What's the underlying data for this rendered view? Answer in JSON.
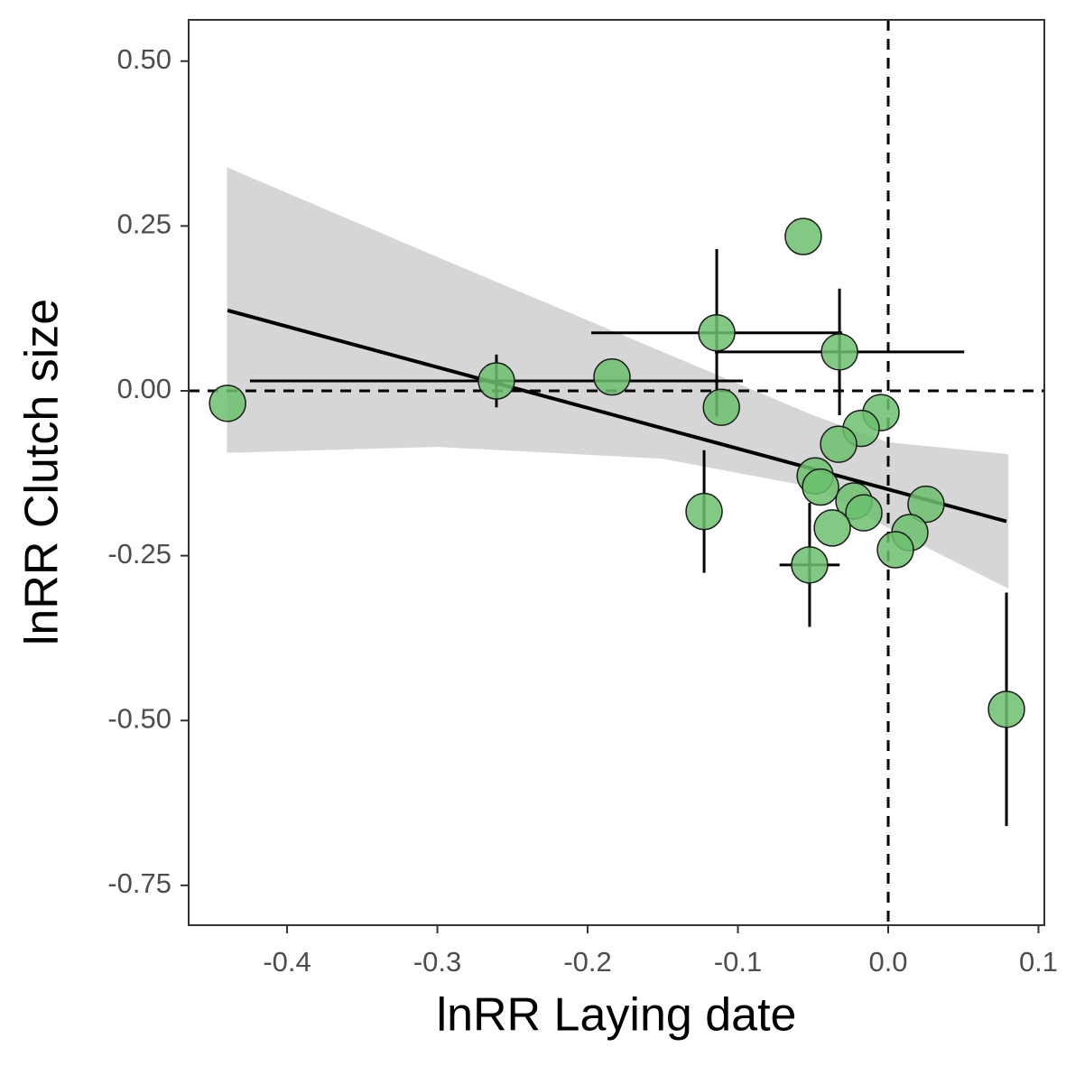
{
  "chart_data": {
    "type": "scatter",
    "x_label": "lnRR Laying date",
    "y_label": "lnRR Clutch size",
    "x": [
      -0.4396,
      -0.2607,
      -0.1838,
      -0.1141,
      -0.0324,
      -0.0565,
      -0.111,
      -0.0048,
      -0.018,
      -0.033,
      -0.1225,
      -0.0486,
      -0.045,
      -0.0228,
      -0.0162,
      -0.0372,
      0.0252,
      0.0144,
      0.0048,
      -0.0523,
      0.0787
    ],
    "y": [
      -0.019,
      0.015,
      0.021,
      0.088,
      0.059,
      0.234,
      -0.025,
      -0.033,
      -0.057,
      -0.081,
      -0.183,
      -0.129,
      -0.146,
      -0.167,
      -0.185,
      -0.208,
      -0.172,
      -0.215,
      -0.241,
      -0.264,
      -0.483
    ],
    "xerr": [
      null,
      0.164,
      null,
      0.0835,
      0.083,
      null,
      null,
      null,
      null,
      null,
      null,
      null,
      null,
      null,
      null,
      null,
      null,
      null,
      null,
      0.02,
      null
    ],
    "yerr": [
      null,
      0.04,
      null,
      0.127,
      0.096,
      null,
      null,
      null,
      null,
      null,
      0.093,
      null,
      null,
      null,
      null,
      null,
      null,
      null,
      null,
      0.094,
      0.177
    ],
    "color": "#6cc06f",
    "fit": {
      "x": [
        -0.4396,
        0.0787
      ],
      "y": [
        0.122,
        -0.198
      ],
      "color": "#000000"
    },
    "band": {
      "x": [
        -0.44,
        -0.3,
        -0.15,
        -0.05,
        0.0,
        0.08
      ],
      "lower": [
        -0.094,
        -0.085,
        -0.103,
        -0.146,
        -0.208,
        -0.3
      ],
      "upper": [
        0.339,
        0.203,
        0.059,
        -0.037,
        -0.078,
        -0.096
      ],
      "color": "#d6d6d6"
    },
    "hline": 0,
    "vline": 0,
    "xlim": [
      -0.4655,
      0.1039
    ],
    "ylim": [
      -0.8104,
      0.5626
    ],
    "xticks": [
      -0.4,
      -0.3,
      -0.2,
      -0.1,
      {
        "value": 0,
        "label": "0.0"
      },
      0.1
    ],
    "yticks": [
      {
        "value": 0.5,
        "label": "0.50"
      },
      0.25,
      {
        "value": 0,
        "label": "0.00"
      },
      -0.25,
      {
        "value": -0.5,
        "label": "-0.50"
      },
      -0.75
    ]
  }
}
